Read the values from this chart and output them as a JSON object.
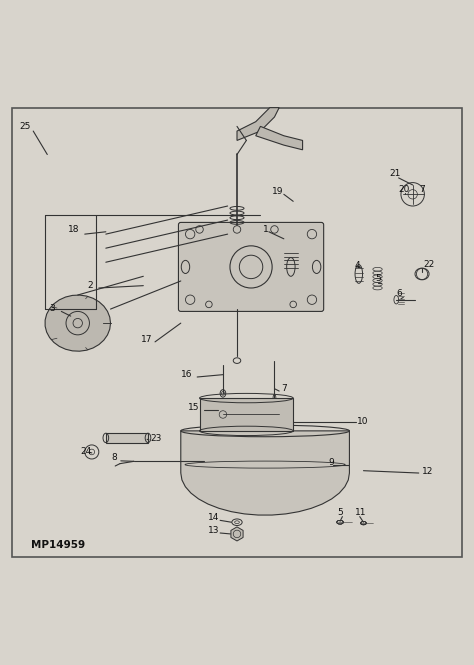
{
  "bg_color": "#d8d4cc",
  "border_color": "#555555",
  "line_color": "#333333",
  "text_color": "#111111",
  "title": "MP14959",
  "fig_width": 4.74,
  "fig_height": 6.65,
  "dpi": 100
}
